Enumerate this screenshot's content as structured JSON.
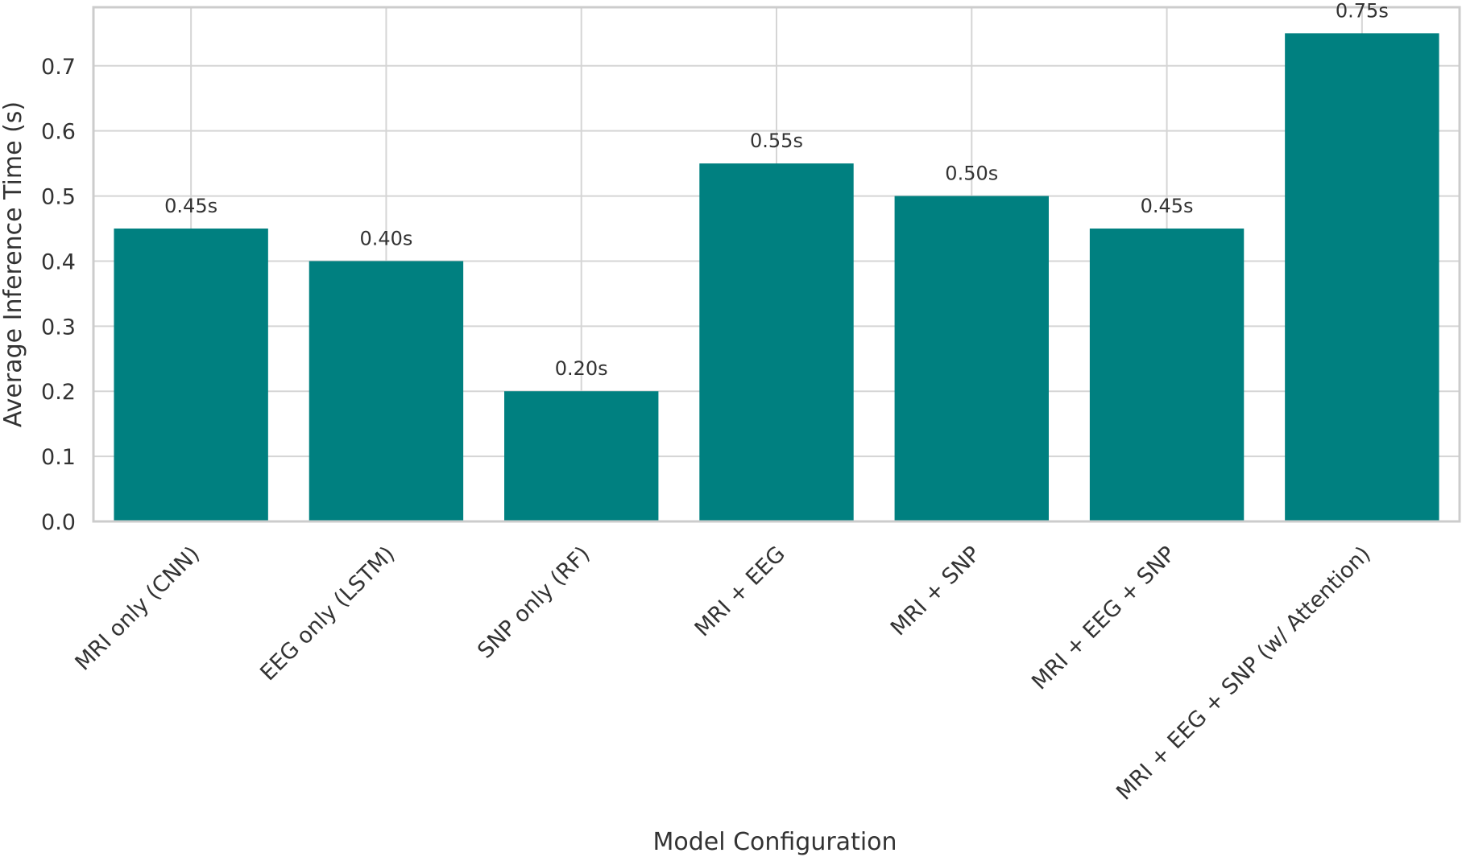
{
  "chart_data": {
    "type": "bar",
    "categories": [
      "MRI only (CNN)",
      "EEG only (LSTM)",
      "SNP only (RF)",
      "MRI + EEG",
      "MRI + SNP",
      "MRI + EEG + SNP",
      "MRI + EEG + SNP (w/ Attention)"
    ],
    "values": [
      0.45,
      0.4,
      0.2,
      0.55,
      0.5,
      0.45,
      0.75
    ],
    "data_labels": [
      "0.45s",
      "0.40s",
      "0.20s",
      "0.55s",
      "0.50s",
      "0.45s",
      "0.75s"
    ],
    "title": "",
    "xlabel": "Model Configuration",
    "ylabel": "Average Inference Time (s)",
    "ylim": [
      0,
      0.79
    ],
    "yticks": [
      0.0,
      0.1,
      0.2,
      0.3,
      0.4,
      0.5,
      0.6,
      0.7
    ],
    "ytick_labels": [
      "0.0",
      "0.1",
      "0.2",
      "0.3",
      "0.4",
      "0.5",
      "0.6",
      "0.7"
    ],
    "grid": true,
    "bar_color": "#008080",
    "legend": "none"
  }
}
